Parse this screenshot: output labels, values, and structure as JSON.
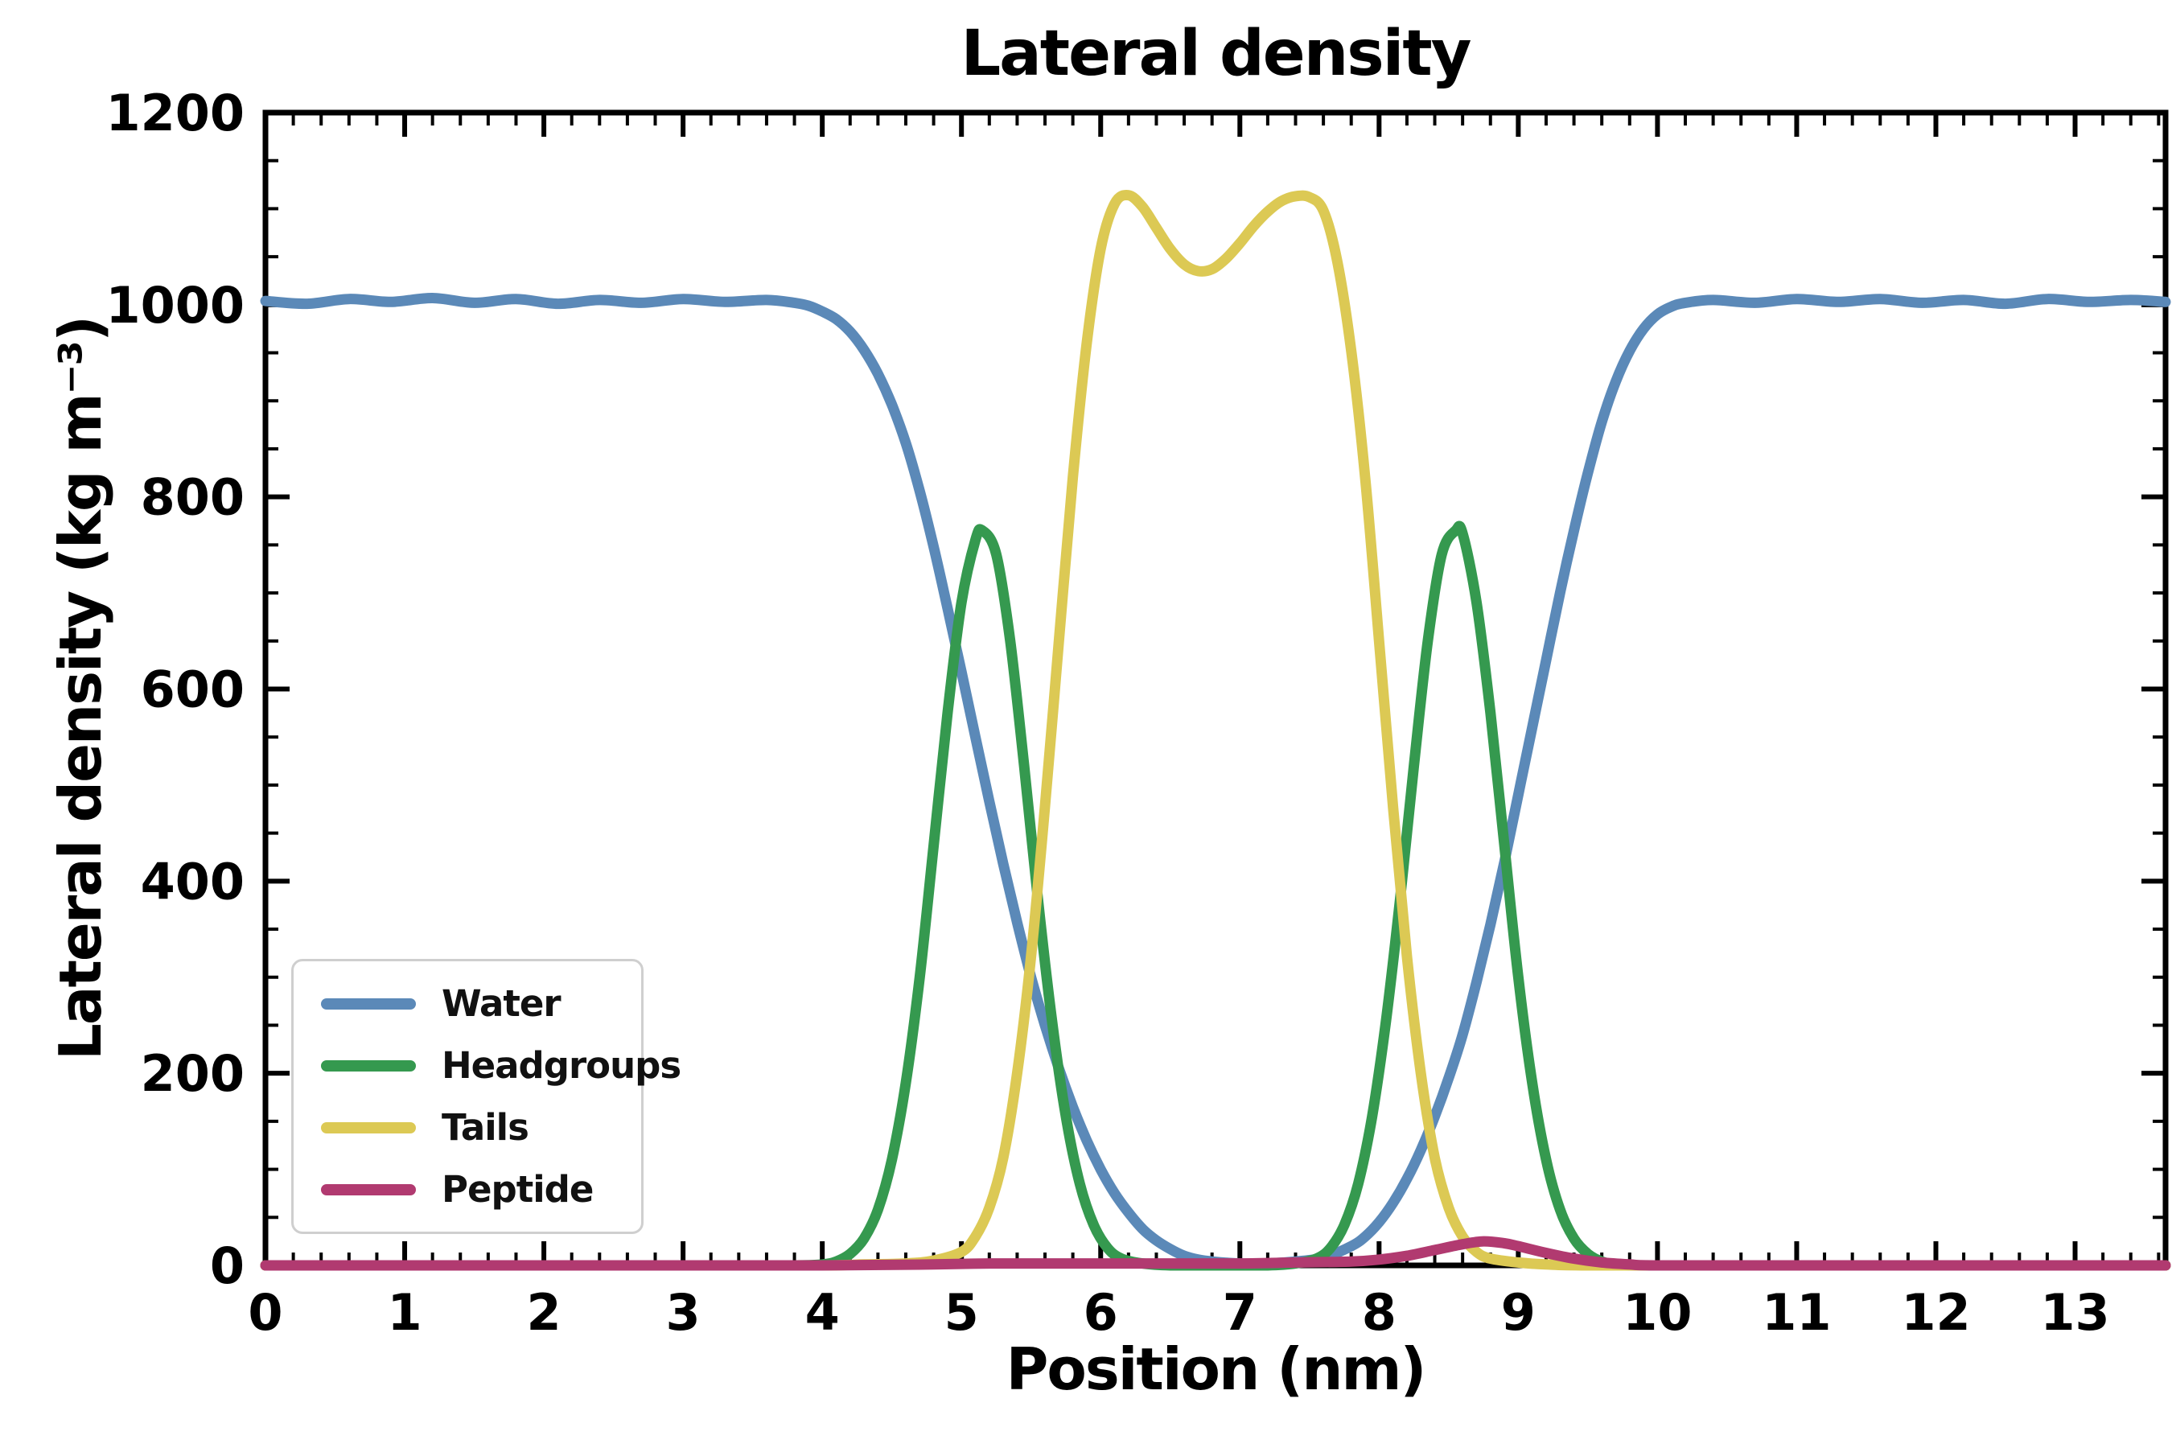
{
  "figure": {
    "background": "#ffffff",
    "axis_color": "#000000",
    "text_color": "#000000"
  },
  "chart_data": {
    "type": "line",
    "title": "Lateral density",
    "xlabel": "Position (nm)",
    "ylabel": "Lateral density (kg m⁻³)",
    "xlim": [
      0,
      13.65
    ],
    "ylim": [
      0,
      1200
    ],
    "xticks": [
      0,
      1,
      2,
      3,
      4,
      5,
      6,
      7,
      8,
      9,
      10,
      11,
      12,
      13
    ],
    "yticks": [
      0,
      200,
      400,
      600,
      800,
      1000,
      1200
    ],
    "x_minor_step": 0.2,
    "y_minor_step": 50,
    "grid": false,
    "tick_direction": "in",
    "legend_position": "lower-left",
    "legend_labels": [
      "Water",
      "Headgroups",
      "Tails",
      "Peptide"
    ],
    "series": [
      {
        "name": "Water",
        "color": "#5b89b8",
        "points": [
          [
            0,
            1004
          ],
          [
            0.3,
            1001
          ],
          [
            0.6,
            1006
          ],
          [
            0.9,
            1003
          ],
          [
            1.2,
            1007
          ],
          [
            1.5,
            1002
          ],
          [
            1.8,
            1006
          ],
          [
            2.1,
            1001
          ],
          [
            2.4,
            1005
          ],
          [
            2.7,
            1002
          ],
          [
            3.0,
            1006
          ],
          [
            3.3,
            1003
          ],
          [
            3.6,
            1005
          ],
          [
            3.8,
            1002
          ],
          [
            3.9,
            999
          ],
          [
            4.0,
            993
          ],
          [
            4.1,
            985
          ],
          [
            4.2,
            972
          ],
          [
            4.3,
            953
          ],
          [
            4.4,
            928
          ],
          [
            4.5,
            896
          ],
          [
            4.6,
            856
          ],
          [
            4.7,
            806
          ],
          [
            4.8,
            748
          ],
          [
            4.9,
            684
          ],
          [
            5.0,
            618
          ],
          [
            5.1,
            550
          ],
          [
            5.2,
            483
          ],
          [
            5.3,
            418
          ],
          [
            5.4,
            357
          ],
          [
            5.5,
            300
          ],
          [
            5.6,
            250
          ],
          [
            5.7,
            205
          ],
          [
            5.8,
            165
          ],
          [
            5.9,
            130
          ],
          [
            6.0,
            100
          ],
          [
            6.1,
            75
          ],
          [
            6.2,
            55
          ],
          [
            6.3,
            38
          ],
          [
            6.4,
            26
          ],
          [
            6.5,
            17
          ],
          [
            6.6,
            10
          ],
          [
            6.7,
            6
          ],
          [
            6.8,
            4
          ],
          [
            7.0,
            2
          ],
          [
            7.2,
            2
          ],
          [
            7.4,
            4
          ],
          [
            7.6,
            8
          ],
          [
            7.8,
            20
          ],
          [
            7.9,
            30
          ],
          [
            8.0,
            45
          ],
          [
            8.1,
            65
          ],
          [
            8.2,
            90
          ],
          [
            8.3,
            120
          ],
          [
            8.4,
            155
          ],
          [
            8.5,
            195
          ],
          [
            8.6,
            240
          ],
          [
            8.7,
            295
          ],
          [
            8.8,
            355
          ],
          [
            8.9,
            420
          ],
          [
            9.0,
            490
          ],
          [
            9.1,
            560
          ],
          [
            9.2,
            630
          ],
          [
            9.3,
            700
          ],
          [
            9.4,
            765
          ],
          [
            9.5,
            825
          ],
          [
            9.6,
            878
          ],
          [
            9.7,
            920
          ],
          [
            9.8,
            952
          ],
          [
            9.9,
            975
          ],
          [
            10.0,
            990
          ],
          [
            10.1,
            998
          ],
          [
            10.2,
            1002
          ],
          [
            10.4,
            1005
          ],
          [
            10.7,
            1002
          ],
          [
            11.0,
            1006
          ],
          [
            11.3,
            1003
          ],
          [
            11.6,
            1006
          ],
          [
            11.9,
            1002
          ],
          [
            12.2,
            1005
          ],
          [
            12.5,
            1001
          ],
          [
            12.8,
            1006
          ],
          [
            13.1,
            1003
          ],
          [
            13.4,
            1005
          ],
          [
            13.65,
            1003
          ]
        ]
      },
      {
        "name": "Headgroups",
        "color": "#35994f",
        "points": [
          [
            0,
            0
          ],
          [
            1,
            0
          ],
          [
            2,
            0
          ],
          [
            3,
            0
          ],
          [
            3.8,
            0
          ],
          [
            4.0,
            1
          ],
          [
            4.1,
            4
          ],
          [
            4.2,
            12
          ],
          [
            4.3,
            28
          ],
          [
            4.4,
            58
          ],
          [
            4.5,
            110
          ],
          [
            4.6,
            190
          ],
          [
            4.7,
            300
          ],
          [
            4.8,
            437
          ],
          [
            4.9,
            575
          ],
          [
            5.0,
            690
          ],
          [
            5.1,
            755
          ],
          [
            5.15,
            765
          ],
          [
            5.25,
            740
          ],
          [
            5.35,
            650
          ],
          [
            5.45,
            520
          ],
          [
            5.55,
            380
          ],
          [
            5.65,
            255
          ],
          [
            5.75,
            155
          ],
          [
            5.85,
            85
          ],
          [
            5.95,
            42
          ],
          [
            6.05,
            18
          ],
          [
            6.15,
            7
          ],
          [
            6.3,
            2
          ],
          [
            6.5,
            0
          ],
          [
            6.85,
            0
          ],
          [
            7.2,
            0
          ],
          [
            7.4,
            2
          ],
          [
            7.55,
            7
          ],
          [
            7.65,
            18
          ],
          [
            7.75,
            42
          ],
          [
            7.85,
            85
          ],
          [
            7.95,
            155
          ],
          [
            8.05,
            255
          ],
          [
            8.15,
            380
          ],
          [
            8.25,
            520
          ],
          [
            8.35,
            650
          ],
          [
            8.45,
            740
          ],
          [
            8.55,
            765
          ],
          [
            8.6,
            762
          ],
          [
            8.7,
            690
          ],
          [
            8.8,
            575
          ],
          [
            8.9,
            437
          ],
          [
            9.0,
            300
          ],
          [
            9.1,
            190
          ],
          [
            9.2,
            110
          ],
          [
            9.3,
            58
          ],
          [
            9.4,
            28
          ],
          [
            9.5,
            12
          ],
          [
            9.6,
            4
          ],
          [
            9.7,
            1
          ],
          [
            9.9,
            0
          ],
          [
            10.5,
            0
          ],
          [
            11.5,
            0
          ],
          [
            12.5,
            0
          ],
          [
            13.65,
            0
          ]
        ]
      },
      {
        "name": "Tails",
        "color": "#dcc954",
        "points": [
          [
            0,
            0
          ],
          [
            1,
            0
          ],
          [
            2,
            0
          ],
          [
            3,
            0
          ],
          [
            4.0,
            0
          ],
          [
            4.3,
            1
          ],
          [
            4.6,
            2
          ],
          [
            4.8,
            5
          ],
          [
            5.0,
            14
          ],
          [
            5.1,
            30
          ],
          [
            5.2,
            60
          ],
          [
            5.3,
            112
          ],
          [
            5.4,
            200
          ],
          [
            5.5,
            322
          ],
          [
            5.6,
            478
          ],
          [
            5.7,
            650
          ],
          [
            5.8,
            820
          ],
          [
            5.9,
            960
          ],
          [
            6.0,
            1058
          ],
          [
            6.1,
            1105
          ],
          [
            6.2,
            1114
          ],
          [
            6.3,
            1102
          ],
          [
            6.4,
            1080
          ],
          [
            6.5,
            1058
          ],
          [
            6.6,
            1042
          ],
          [
            6.7,
            1035
          ],
          [
            6.8,
            1037
          ],
          [
            6.9,
            1048
          ],
          [
            7.0,
            1064
          ],
          [
            7.1,
            1082
          ],
          [
            7.2,
            1097
          ],
          [
            7.3,
            1108
          ],
          [
            7.4,
            1113
          ],
          [
            7.5,
            1112
          ],
          [
            7.6,
            1098
          ],
          [
            7.7,
            1045
          ],
          [
            7.8,
            952
          ],
          [
            7.9,
            820
          ],
          [
            8.0,
            650
          ],
          [
            8.1,
            478
          ],
          [
            8.2,
            322
          ],
          [
            8.3,
            200
          ],
          [
            8.4,
            112
          ],
          [
            8.5,
            60
          ],
          [
            8.6,
            30
          ],
          [
            8.7,
            14
          ],
          [
            8.8,
            7
          ],
          [
            9.0,
            3
          ],
          [
            9.2,
            1
          ],
          [
            9.5,
            0
          ],
          [
            10.5,
            0
          ],
          [
            12,
            0
          ],
          [
            13.65,
            0
          ]
        ]
      },
      {
        "name": "Peptide",
        "color": "#b13a70",
        "points": [
          [
            0,
            0
          ],
          [
            1,
            0
          ],
          [
            2,
            0
          ],
          [
            3,
            0
          ],
          [
            4,
            0
          ],
          [
            4.8,
            1
          ],
          [
            5.2,
            2
          ],
          [
            5.6,
            2
          ],
          [
            6.0,
            2
          ],
          [
            6.5,
            2
          ],
          [
            7.0,
            2
          ],
          [
            7.4,
            3
          ],
          [
            7.8,
            4
          ],
          [
            8.0,
            6
          ],
          [
            8.2,
            10
          ],
          [
            8.4,
            16
          ],
          [
            8.6,
            22
          ],
          [
            8.75,
            25
          ],
          [
            8.9,
            23
          ],
          [
            9.0,
            20
          ],
          [
            9.2,
            13
          ],
          [
            9.4,
            7
          ],
          [
            9.6,
            3
          ],
          [
            9.8,
            1
          ],
          [
            10.0,
            0
          ],
          [
            11,
            0
          ],
          [
            12,
            0
          ],
          [
            13.65,
            0
          ]
        ]
      }
    ]
  }
}
